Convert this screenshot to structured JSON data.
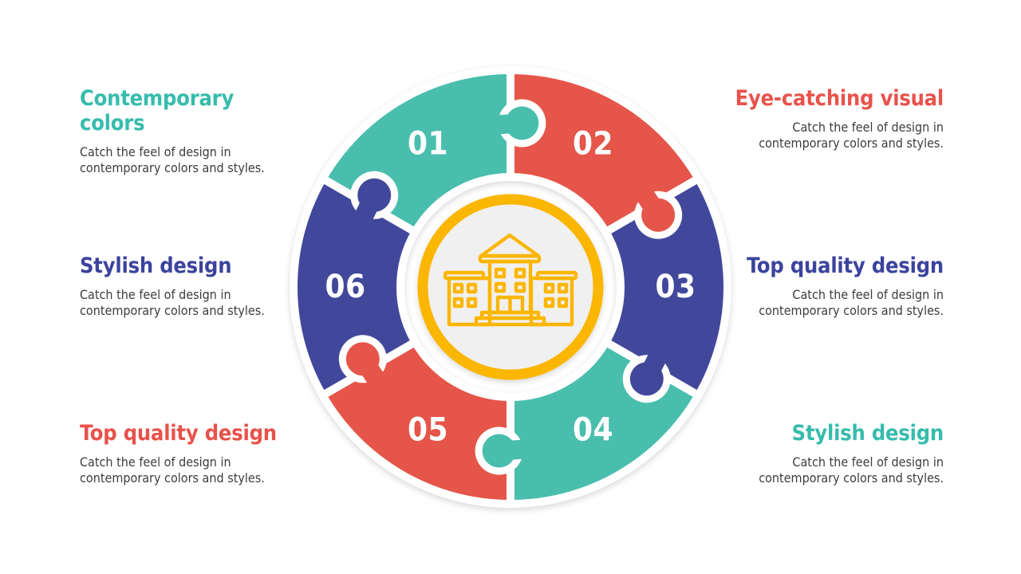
{
  "slide": {
    "background": "#ffffff"
  },
  "diagram": {
    "type": "circular-puzzle-6-pieces",
    "colors": {
      "teal": "#49BEAD",
      "red": "#E65549",
      "blue": "#41489B",
      "gold": "#FBB600",
      "hub_fill": "#F1F0F0",
      "number_text": "#ffffff"
    },
    "center_icon": "school-building",
    "segments": [
      {
        "number": "01",
        "color_key": "teal"
      },
      {
        "number": "02",
        "color_key": "red"
      },
      {
        "number": "03",
        "color_key": "blue"
      },
      {
        "number": "04",
        "color_key": "teal"
      },
      {
        "number": "05",
        "color_key": "red"
      },
      {
        "number": "06",
        "color_key": "blue"
      }
    ]
  },
  "labels": {
    "left": [
      {
        "title": "Contemporary colors",
        "title_color": "#36BCAC",
        "description": "Catch the feel of design in contemporary colors and styles."
      },
      {
        "title": "Stylish design",
        "title_color": "#3B439D",
        "description": "Catch the feel of design in contemporary colors and styles."
      },
      {
        "title": "Top quality design",
        "title_color": "#E8524A",
        "description": "Catch the feel of design in contemporary colors and styles."
      }
    ],
    "right": [
      {
        "title": "Eye-catching visual",
        "title_color": "#E8524A",
        "description": "Catch the feel of design in contemporary colors and styles."
      },
      {
        "title": "Top quality design",
        "title_color": "#3B439D",
        "description": "Catch the feel of design in contemporary colors and styles."
      },
      {
        "title": "Stylish design",
        "title_color": "#36BCAC",
        "description": "Catch the feel of design in contemporary colors and styles."
      }
    ]
  }
}
